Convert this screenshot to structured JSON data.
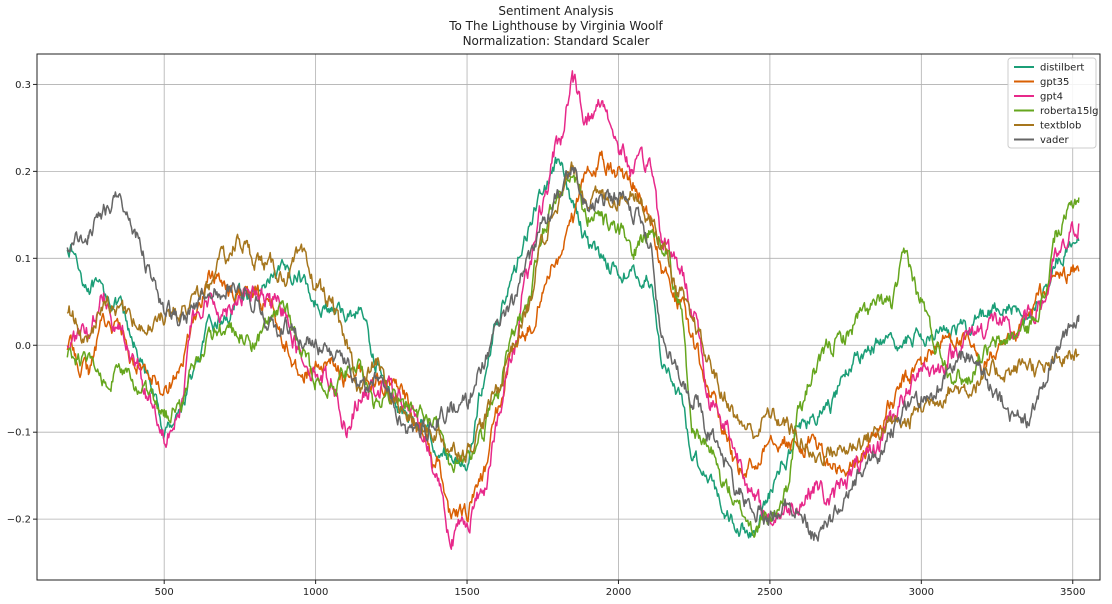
{
  "chart_data": {
    "type": "line",
    "title": "Sentiment Analysis",
    "subtitle": "To The Lighthouse by Virginia Woolf",
    "subtitle2": "Normalization: Standard Scaler",
    "xlabel": "",
    "ylabel": "",
    "xlim": [
      80,
      3590
    ],
    "ylim": [
      -0.27,
      0.335
    ],
    "xticks": [
      500,
      1000,
      1500,
      2000,
      2500,
      3000,
      3500
    ],
    "yticks": [
      -0.2,
      -0.1,
      0.0,
      0.1,
      0.2,
      0.3
    ],
    "ytick_labels": [
      "−0.2",
      "−0.1",
      "0.0",
      "0.1",
      "0.2",
      "0.3"
    ],
    "grid": true,
    "legend_position": "top-right",
    "x": [
      180,
      250,
      300,
      350,
      400,
      450,
      500,
      550,
      600,
      650,
      700,
      750,
      800,
      850,
      900,
      950,
      1000,
      1050,
      1100,
      1150,
      1200,
      1250,
      1300,
      1350,
      1400,
      1450,
      1500,
      1550,
      1600,
      1650,
      1700,
      1750,
      1800,
      1850,
      1900,
      1950,
      2000,
      2050,
      2100,
      2150,
      2200,
      2250,
      2300,
      2350,
      2400,
      2450,
      2500,
      2550,
      2600,
      2650,
      2700,
      2750,
      2800,
      2850,
      2900,
      2950,
      3000,
      3050,
      3100,
      3150,
      3200,
      3250,
      3300,
      3350,
      3400,
      3450,
      3520
    ],
    "series": [
      {
        "name": "distilbert",
        "color": "#1b9e77",
        "noise": 0.006,
        "values": [
          0.115,
          0.07,
          0.06,
          0.045,
          0.0,
          -0.04,
          -0.1,
          -0.075,
          -0.03,
          0.02,
          0.03,
          0.055,
          0.06,
          0.07,
          0.085,
          0.08,
          0.05,
          0.04,
          0.035,
          0.04,
          -0.02,
          -0.06,
          -0.08,
          -0.09,
          -0.115,
          -0.13,
          -0.135,
          -0.05,
          0.03,
          0.08,
          0.13,
          0.18,
          0.21,
          0.16,
          0.12,
          0.1,
          0.085,
          0.08,
          0.075,
          -0.02,
          -0.06,
          -0.13,
          -0.15,
          -0.19,
          -0.21,
          -0.215,
          -0.17,
          -0.13,
          -0.09,
          -0.085,
          -0.07,
          -0.03,
          -0.01,
          -0.0,
          0.0,
          0.005,
          0.01,
          0.02,
          0.015,
          0.02,
          0.035,
          0.045,
          0.04,
          0.03,
          0.06,
          0.1,
          0.12
        ]
      },
      {
        "name": "gpt35",
        "color": "#d95f02",
        "noise": 0.007,
        "values": [
          0.0,
          -0.03,
          0.03,
          0.02,
          -0.02,
          -0.03,
          -0.05,
          -0.03,
          0.03,
          0.08,
          0.07,
          0.06,
          0.055,
          0.05,
          0.0,
          -0.03,
          -0.03,
          -0.02,
          -0.04,
          -0.03,
          -0.04,
          -0.05,
          -0.06,
          -0.1,
          -0.14,
          -0.2,
          -0.19,
          -0.15,
          -0.08,
          -0.01,
          0.015,
          0.06,
          0.1,
          0.15,
          0.2,
          0.21,
          0.2,
          0.19,
          0.15,
          0.08,
          0.05,
          0.0,
          -0.05,
          -0.1,
          -0.15,
          -0.14,
          -0.1,
          -0.11,
          -0.12,
          -0.11,
          -0.14,
          -0.15,
          -0.13,
          -0.1,
          -0.07,
          -0.04,
          -0.02,
          0.0,
          0.01,
          0.0,
          -0.02,
          -0.01,
          0.0,
          0.03,
          0.06,
          0.08,
          0.085
        ]
      },
      {
        "name": "gpt4",
        "color": "#e7298a",
        "noise": 0.008,
        "values": [
          0.005,
          0.01,
          0.06,
          0.02,
          -0.02,
          -0.06,
          -0.1,
          -0.07,
          0.03,
          0.05,
          0.04,
          0.06,
          0.06,
          0.05,
          0.04,
          -0.01,
          -0.03,
          -0.04,
          -0.09,
          -0.06,
          -0.05,
          -0.05,
          -0.07,
          -0.1,
          -0.15,
          -0.22,
          -0.2,
          -0.17,
          -0.09,
          -0.01,
          0.09,
          0.16,
          0.23,
          0.3,
          0.26,
          0.28,
          0.23,
          0.2,
          0.21,
          0.12,
          0.09,
          0.04,
          -0.06,
          -0.09,
          -0.13,
          -0.18,
          -0.2,
          -0.19,
          -0.18,
          -0.16,
          -0.18,
          -0.15,
          -0.14,
          -0.12,
          -0.08,
          -0.06,
          -0.02,
          -0.03,
          -0.01,
          0.01,
          0.02,
          0.03,
          0.01,
          0.03,
          0.05,
          0.1,
          0.14
        ]
      },
      {
        "name": "roberta15lg",
        "color": "#66a61e",
        "noise": 0.007,
        "values": [
          -0.01,
          -0.02,
          -0.04,
          -0.03,
          -0.045,
          -0.06,
          -0.08,
          -0.07,
          -0.02,
          0.01,
          0.02,
          0.01,
          0.0,
          0.03,
          0.04,
          0.0,
          -0.04,
          -0.05,
          -0.03,
          -0.03,
          -0.07,
          -0.06,
          -0.07,
          -0.08,
          -0.09,
          -0.14,
          -0.13,
          -0.1,
          -0.05,
          0.01,
          0.05,
          0.13,
          0.17,
          0.2,
          0.15,
          0.14,
          0.13,
          0.11,
          0.13,
          0.12,
          0.05,
          -0.1,
          -0.12,
          -0.16,
          -0.19,
          -0.21,
          -0.2,
          -0.17,
          -0.07,
          -0.03,
          -0.0,
          0.01,
          0.035,
          0.045,
          0.05,
          0.1,
          0.05,
          0.0,
          -0.03,
          -0.04,
          -0.01,
          0.0,
          0.01,
          0.02,
          0.05,
          0.13,
          0.17
        ]
      },
      {
        "name": "textblob",
        "color": "#a6761d",
        "noise": 0.007,
        "values": [
          0.04,
          0.0,
          0.05,
          0.04,
          0.03,
          0.02,
          0.035,
          0.04,
          0.05,
          0.07,
          0.1,
          0.12,
          0.1,
          0.09,
          0.08,
          0.1,
          0.07,
          0.05,
          0.0,
          -0.05,
          -0.02,
          -0.06,
          -0.08,
          -0.1,
          -0.1,
          -0.12,
          -0.12,
          -0.09,
          -0.05,
          0.0,
          0.04,
          0.12,
          0.17,
          0.2,
          0.17,
          0.17,
          0.17,
          0.18,
          0.15,
          0.11,
          0.06,
          0.02,
          -0.02,
          -0.06,
          -0.09,
          -0.1,
          -0.08,
          -0.09,
          -0.11,
          -0.13,
          -0.12,
          -0.12,
          -0.11,
          -0.1,
          -0.09,
          -0.09,
          -0.07,
          -0.06,
          -0.05,
          -0.05,
          -0.04,
          -0.03,
          -0.03,
          -0.02,
          -0.03,
          -0.02,
          -0.01
        ]
      },
      {
        "name": "vader",
        "color": "#666666",
        "noise": 0.007,
        "values": [
          0.115,
          0.13,
          0.155,
          0.17,
          0.13,
          0.09,
          0.04,
          0.03,
          0.04,
          0.06,
          0.065,
          0.07,
          0.05,
          0.02,
          0.02,
          0.01,
          0.0,
          -0.01,
          -0.02,
          -0.05,
          -0.04,
          -0.06,
          -0.1,
          -0.1,
          -0.09,
          -0.07,
          -0.06,
          -0.02,
          0.02,
          0.05,
          0.09,
          0.14,
          0.17,
          0.2,
          0.16,
          0.17,
          0.17,
          0.15,
          0.12,
          0.0,
          -0.03,
          -0.06,
          -0.1,
          -0.14,
          -0.17,
          -0.19,
          -0.2,
          -0.18,
          -0.19,
          -0.22,
          -0.2,
          -0.18,
          -0.15,
          -0.13,
          -0.1,
          -0.07,
          -0.06,
          -0.05,
          -0.03,
          -0.01,
          -0.03,
          -0.06,
          -0.08,
          -0.09,
          -0.05,
          0.0,
          0.035
        ]
      }
    ]
  }
}
